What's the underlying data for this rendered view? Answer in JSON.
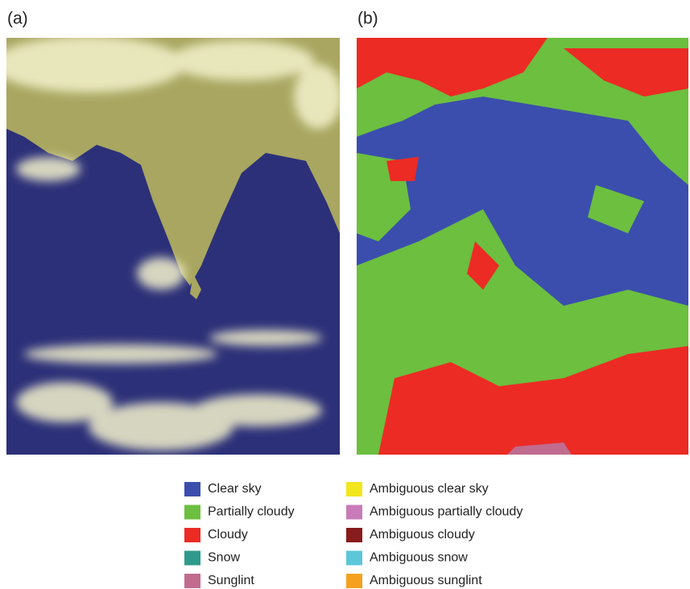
{
  "panels": [
    {
      "label": "(a)"
    },
    {
      "label": "(b)"
    }
  ],
  "legend": {
    "items": [
      {
        "name": "Clear sky",
        "color": "#3b4ead"
      },
      {
        "name": "Partially cloudy",
        "color": "#6cbf3f"
      },
      {
        "name": "Cloudy",
        "color": "#ec2b24"
      },
      {
        "name": "Snow",
        "color": "#2f9a8b"
      },
      {
        "name": "Sunglint",
        "color": "#c16b8f"
      },
      {
        "name": "Ambiguous clear sky",
        "color": "#f2e61c"
      },
      {
        "name": "Ambiguous partially cloudy",
        "color": "#c97ab9"
      },
      {
        "name": "Ambiguous cloudy",
        "color": "#881b1b"
      },
      {
        "name": "Ambiguous snow",
        "color": "#5cc7d8"
      },
      {
        "name": "Ambiguous sunglint",
        "color": "#f5a11f"
      }
    ]
  }
}
